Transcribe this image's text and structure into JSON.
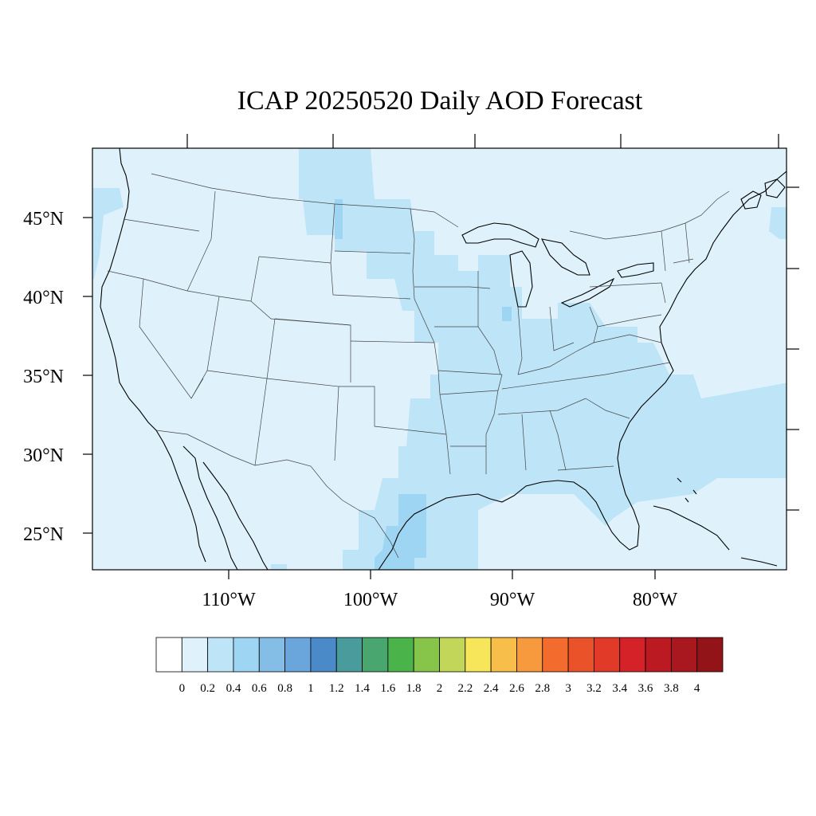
{
  "title": "ICAP 20250520 Daily AOD Forecast",
  "map": {
    "projection": "lambert-conformal",
    "region": "Contiguous United States",
    "background_aod_color": "#dff2fb",
    "land_outline_color": "#000000",
    "state_border_color": "#333333",
    "lon_labels": [
      "110°W",
      "100°W",
      "90°W",
      "80°W"
    ],
    "lat_labels": [
      "45°N",
      "40°N",
      "35°N",
      "30°N",
      "25°N"
    ],
    "aod_regions": [
      {
        "name": "Central plains to Gulf coast plume",
        "aod_range": "0.2-0.4"
      },
      {
        "name": "South Texas coast",
        "aod_range": "0.4-0.6"
      },
      {
        "name": "Southeast Atlantic offshore",
        "aod_range": "0.2-0.4"
      },
      {
        "name": "Pacific northwest coast",
        "aod_range": "0.2-0.4"
      }
    ]
  },
  "colorbar": {
    "ticks": [
      "0",
      "0.2",
      "0.4",
      "0.6",
      "0.8",
      "1",
      "1.2",
      "1.4",
      "1.6",
      "1.8",
      "2",
      "2.2",
      "2.4",
      "2.6",
      "2.8",
      "3",
      "3.2",
      "3.4",
      "3.6",
      "3.8",
      "4"
    ],
    "colors": [
      "#ffffff",
      "#dff2fb",
      "#bde4f7",
      "#9dd5f3",
      "#84bde6",
      "#6aa6db",
      "#4a8ac8",
      "#4a9c9c",
      "#4aa66f",
      "#4ab34a",
      "#86c44a",
      "#c2d65a",
      "#f8e65a",
      "#f8be4a",
      "#f79a3e",
      "#f46b2e",
      "#ea532a",
      "#e23a28",
      "#d42228",
      "#bc1a22",
      "#a8181e",
      "#921418"
    ],
    "chart_data": {
      "type": "heatmap",
      "title": "ICAP 20250520 Daily AOD Forecast",
      "xlabel": "",
      "ylabel": "",
      "value_range": [
        0,
        4
      ],
      "levels": [
        0,
        0.2,
        0.4,
        0.6,
        0.8,
        1,
        1.2,
        1.4,
        1.6,
        1.8,
        2,
        2.2,
        2.4,
        2.6,
        2.8,
        3,
        3.2,
        3.4,
        3.6,
        3.8,
        4
      ],
      "x_ticks": [
        "110°W",
        "100°W",
        "90°W",
        "80°W"
      ],
      "y_ticks": [
        "45°N",
        "40°N",
        "35°N",
        "30°N",
        "25°N"
      ],
      "legend": "bottom",
      "grid": false
    }
  }
}
